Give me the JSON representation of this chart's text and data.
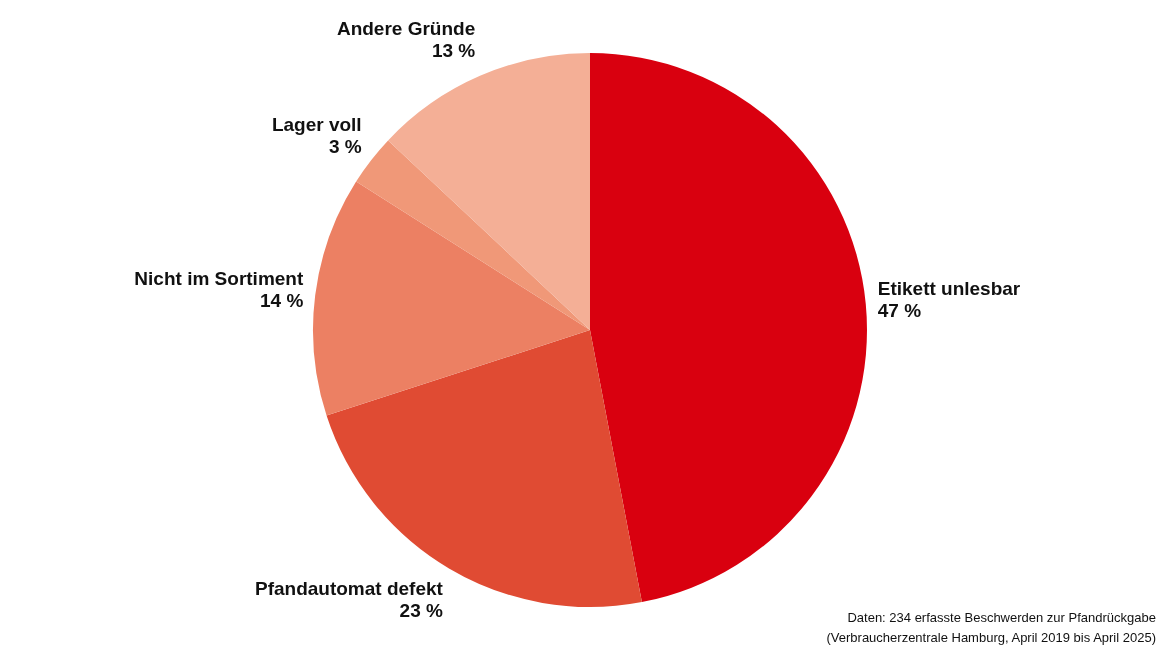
{
  "chart_data": {
    "type": "pie",
    "categories": [
      "Etikett unlesbar",
      "Pfandautomat defekt",
      "Nicht im Sortiment",
      "Lager voll",
      "Andere Gründe"
    ],
    "values": [
      47,
      23,
      14,
      3,
      13
    ],
    "value_labels": [
      "47 %",
      "23 %",
      "14 %",
      "3 %",
      "13 %"
    ],
    "colors": [
      "#d9000f",
      "#e04b33",
      "#ec8063",
      "#f09878",
      "#f4af96"
    ],
    "legend": false,
    "annotations": [
      "Daten: 234 erfasste Beschwerden zur Pfandrückgabe",
      "(Verbraucherzentrale Hamburg, April 2019 bis April 2025)"
    ]
  }
}
